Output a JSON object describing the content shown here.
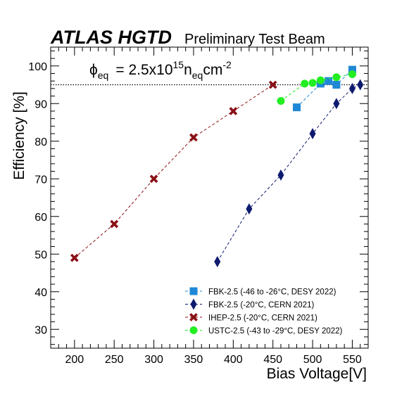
{
  "header": {
    "experiment": "ATLAS HGTD",
    "status": "Preliminary Test Beam"
  },
  "annotation": {
    "phi": "ϕ",
    "phi_sub": "eq",
    "eq_sign": "= 2.5x10",
    "exponent": "15",
    "n_label": "n",
    "n_sub": "eq",
    "cm_label": "cm",
    "cm_exp": "-2"
  },
  "chart_data": {
    "type": "line",
    "title": "",
    "xlabel": "Bias Voltage[V]",
    "ylabel": "Efficiency [%]",
    "xlim": [
      170,
      570
    ],
    "ylim": [
      25,
      105
    ],
    "xticks": [
      200,
      250,
      300,
      350,
      400,
      450,
      500,
      550
    ],
    "yticks": [
      30,
      40,
      50,
      60,
      70,
      80,
      90,
      100
    ],
    "reference_line": {
      "y": 95,
      "style": "dotted",
      "color": "#000000"
    },
    "legend_position": "bottom-right",
    "grid": false,
    "series": [
      {
        "name": "FBK-2.5 (-46 to -26°C, DESY 2022)",
        "color": "#1f88d6",
        "marker": "square",
        "points": [
          [
            480,
            89
          ],
          [
            510,
            95.3
          ],
          [
            520,
            96
          ],
          [
            530,
            95
          ],
          [
            550,
            99
          ]
        ]
      },
      {
        "name": "FBK-2.5 (-20°C, CERN 2021)",
        "color": "#0d1a6e",
        "marker": "diamond",
        "points": [
          [
            380,
            48
          ],
          [
            420,
            62
          ],
          [
            460,
            71
          ],
          [
            500,
            82
          ],
          [
            530,
            90
          ],
          [
            550,
            94
          ],
          [
            560,
            95
          ]
        ]
      },
      {
        "name": "IHEP-2.5 (-20°C, CERN 2021)",
        "color": "#8a1016",
        "marker": "x",
        "points": [
          [
            200,
            49
          ],
          [
            250,
            58
          ],
          [
            300,
            70
          ],
          [
            350,
            81
          ],
          [
            400,
            88
          ],
          [
            450,
            95
          ]
        ]
      },
      {
        "name": "USTC-2.5 (-43 to -29°C, DESY 2022)",
        "color": "#22ee22",
        "marker": "circle",
        "points": [
          [
            460,
            90.7
          ],
          [
            490,
            95.3
          ],
          [
            500,
            95.5
          ],
          [
            510,
            96.2
          ],
          [
            530,
            97
          ],
          [
            550,
            97.8
          ]
        ]
      }
    ]
  }
}
